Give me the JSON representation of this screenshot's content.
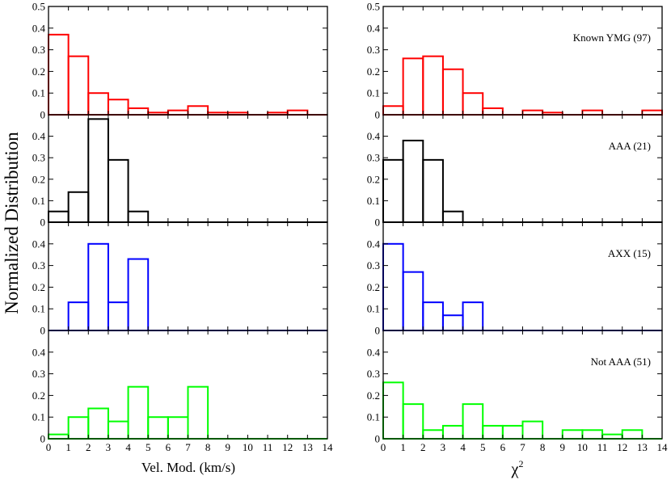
{
  "figure": {
    "ylabel": "Normalized Distribution",
    "xlabel_left": "Vel. Mod. (km/s)",
    "xlabel_right_symbol": "χ",
    "xlabel_right_sup": "2"
  },
  "chart_data": [
    {
      "id": "vel-known",
      "type": "bar",
      "column": "velocity",
      "row": 0,
      "label": "",
      "color": "#ff0000",
      "xlim": [
        0,
        14
      ],
      "ylim": [
        0,
        0.5
      ],
      "yticks": [
        "0",
        "0.1",
        "0.2",
        "0.3",
        "0.4",
        "0.5"
      ],
      "bin_edges": [
        0,
        1,
        2,
        3,
        4,
        5,
        6,
        7,
        8,
        9,
        10,
        11,
        12,
        13,
        14
      ],
      "values": [
        0.37,
        0.27,
        0.1,
        0.07,
        0.03,
        0.01,
        0.02,
        0.04,
        0.01,
        0.01,
        0.0,
        0.01,
        0.02,
        0.0
      ]
    },
    {
      "id": "chi-known",
      "type": "bar",
      "column": "chi2",
      "row": 0,
      "label": "Known YMG (97)",
      "color": "#ff0000",
      "xlim": [
        0,
        14
      ],
      "ylim": [
        0,
        0.5
      ],
      "yticks": [
        "0",
        "0.1",
        "0.2",
        "0.3",
        "0.4",
        "0.5"
      ],
      "bin_edges": [
        0,
        1,
        2,
        3,
        4,
        5,
        6,
        7,
        8,
        9,
        10,
        11,
        12,
        13,
        14
      ],
      "values": [
        0.04,
        0.26,
        0.27,
        0.21,
        0.1,
        0.03,
        0.0,
        0.02,
        0.01,
        0.0,
        0.02,
        0.0,
        0.0,
        0.02
      ]
    },
    {
      "id": "vel-aaa",
      "type": "bar",
      "column": "velocity",
      "row": 1,
      "label": "",
      "color": "#000000",
      "xlim": [
        0,
        14
      ],
      "ylim": [
        0,
        0.5
      ],
      "yticks": [
        "0",
        "0.1",
        "0.2",
        "0.3",
        "0.4"
      ],
      "bin_edges": [
        0,
        1,
        2,
        3,
        4,
        5,
        6,
        7,
        8,
        9,
        10,
        11,
        12,
        13,
        14
      ],
      "values": [
        0.05,
        0.14,
        0.48,
        0.29,
        0.05,
        0,
        0,
        0,
        0,
        0,
        0,
        0,
        0,
        0
      ]
    },
    {
      "id": "chi-aaa",
      "type": "bar",
      "column": "chi2",
      "row": 1,
      "label": "AAA (21)",
      "color": "#000000",
      "xlim": [
        0,
        14
      ],
      "ylim": [
        0,
        0.5
      ],
      "yticks": [
        "0",
        "0.1",
        "0.2",
        "0.3",
        "0.4"
      ],
      "bin_edges": [
        0,
        1,
        2,
        3,
        4,
        5,
        6,
        7,
        8,
        9,
        10,
        11,
        12,
        13,
        14
      ],
      "values": [
        0.29,
        0.38,
        0.29,
        0.05,
        0,
        0,
        0,
        0,
        0,
        0,
        0,
        0,
        0,
        0
      ]
    },
    {
      "id": "vel-axx",
      "type": "bar",
      "column": "velocity",
      "row": 2,
      "label": "",
      "color": "#0000ff",
      "xlim": [
        0,
        14
      ],
      "ylim": [
        0,
        0.5
      ],
      "yticks": [
        "0",
        "0.1",
        "0.2",
        "0.3",
        "0.4"
      ],
      "bin_edges": [
        0,
        1,
        2,
        3,
        4,
        5,
        6,
        7,
        8,
        9,
        10,
        11,
        12,
        13,
        14
      ],
      "values": [
        0.0,
        0.13,
        0.4,
        0.13,
        0.33,
        0,
        0,
        0,
        0,
        0,
        0,
        0,
        0,
        0
      ]
    },
    {
      "id": "chi-axx",
      "type": "bar",
      "column": "chi2",
      "row": 2,
      "label": "AXX (15)",
      "color": "#0000ff",
      "xlim": [
        0,
        14
      ],
      "ylim": [
        0,
        0.5
      ],
      "yticks": [
        "0",
        "0.1",
        "0.2",
        "0.3",
        "0.4"
      ],
      "bin_edges": [
        0,
        1,
        2,
        3,
        4,
        5,
        6,
        7,
        8,
        9,
        10,
        11,
        12,
        13,
        14
      ],
      "values": [
        0.4,
        0.27,
        0.13,
        0.07,
        0.13,
        0,
        0,
        0,
        0,
        0,
        0,
        0,
        0,
        0
      ]
    },
    {
      "id": "vel-notaaa",
      "type": "bar",
      "column": "velocity",
      "row": 3,
      "label": "",
      "color": "#00ff00",
      "xlim": [
        0,
        14
      ],
      "ylim": [
        0,
        0.5
      ],
      "yticks": [
        "0",
        "0.1",
        "0.2",
        "0.3",
        "0.4"
      ],
      "xticks": [
        "0",
        "1",
        "2",
        "3",
        "4",
        "5",
        "6",
        "7",
        "8",
        "9",
        "10",
        "11",
        "12",
        "13",
        "14"
      ],
      "bin_edges": [
        0,
        1,
        2,
        3,
        4,
        5,
        6,
        7,
        8,
        9,
        10,
        11,
        12,
        13,
        14
      ],
      "values": [
        0.02,
        0.1,
        0.14,
        0.08,
        0.24,
        0.1,
        0.1,
        0.24,
        0,
        0,
        0,
        0,
        0,
        0
      ]
    },
    {
      "id": "chi-notaaa",
      "type": "bar",
      "column": "chi2",
      "row": 3,
      "label": "Not AAA (51)",
      "color": "#00ff00",
      "xlim": [
        0,
        14
      ],
      "ylim": [
        0,
        0.5
      ],
      "yticks": [
        "0",
        "0.1",
        "0.2",
        "0.3",
        "0.4"
      ],
      "xticks": [
        "0",
        "1",
        "2",
        "3",
        "4",
        "5",
        "6",
        "7",
        "8",
        "9",
        "10",
        "11",
        "12",
        "13",
        "14"
      ],
      "bin_edges": [
        0,
        1,
        2,
        3,
        4,
        5,
        6,
        7,
        8,
        9,
        10,
        11,
        12,
        13,
        14
      ],
      "values": [
        0.26,
        0.16,
        0.04,
        0.06,
        0.16,
        0.06,
        0.06,
        0.08,
        0.0,
        0.04,
        0.04,
        0.02,
        0.04,
        0.0
      ]
    }
  ]
}
